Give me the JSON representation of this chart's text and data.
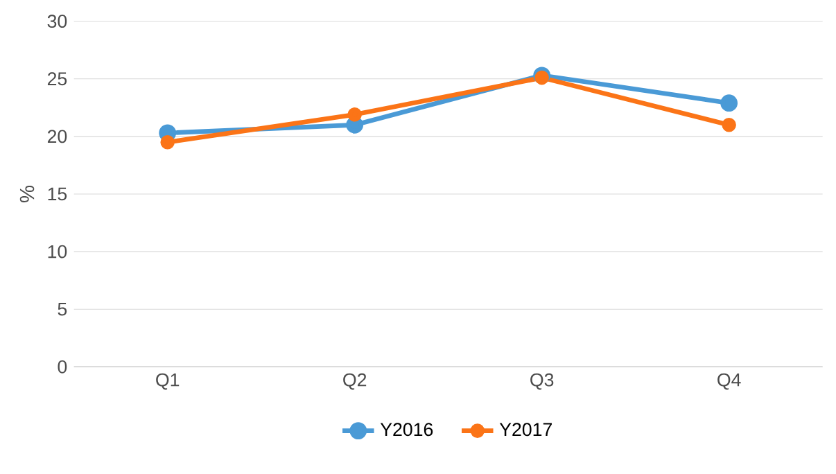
{
  "chart_data": {
    "type": "line",
    "ylabel": "%",
    "categories": [
      "Q1",
      "Q2",
      "Q3",
      "Q4"
    ],
    "series": [
      {
        "name": "Y2016",
        "color": "#4a9ad6",
        "values": [
          20.3,
          21.0,
          25.3,
          22.9
        ]
      },
      {
        "name": "Y2017",
        "color": "#fb7417",
        "values": [
          19.5,
          21.9,
          25.1,
          21.0
        ]
      }
    ],
    "ylim": [
      0,
      30
    ],
    "yticks": [
      0,
      5,
      10,
      15,
      20,
      25,
      30
    ],
    "grid": "y",
    "legend": "bottom",
    "marker": "circle",
    "line_style": "solid"
  }
}
